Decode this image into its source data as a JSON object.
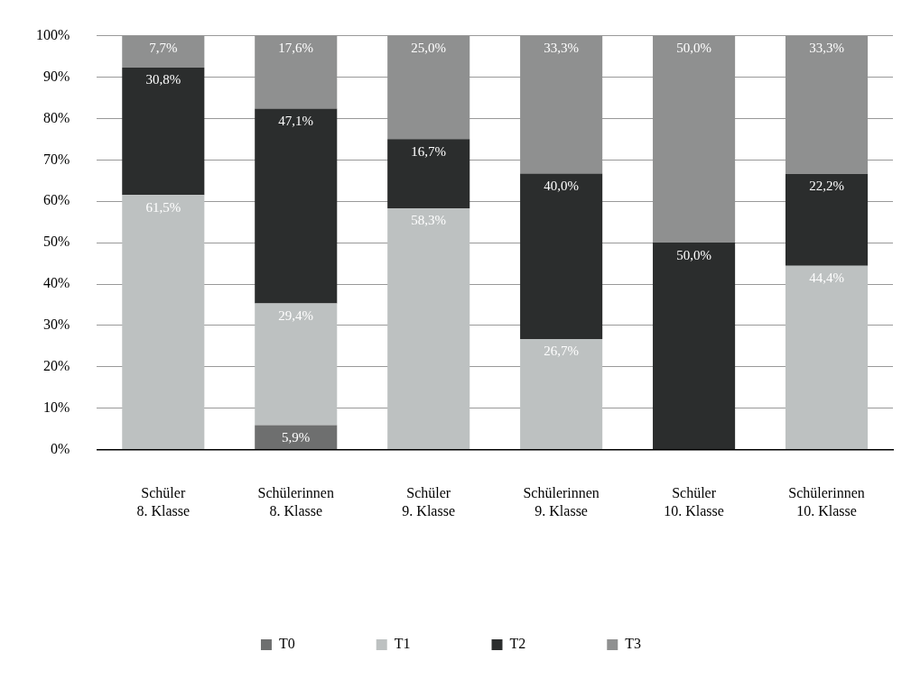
{
  "chart_data": {
    "type": "bar",
    "stacked": true,
    "categories": [
      "Schüler\n8. Klasse",
      "Schülerinnen\n8. Klasse",
      "Schüler\n9. Klasse",
      "Schülerinnen\n9. Klasse",
      "Schüler\n10. Klasse",
      "Schülerinnen\n10. Klasse"
    ],
    "series": [
      {
        "name": "T0",
        "color": "#6e6f6f",
        "values": [
          null,
          5.9,
          null,
          null,
          null,
          null
        ],
        "value_labels": [
          null,
          "5,9%",
          null,
          null,
          null,
          null
        ]
      },
      {
        "name": "T1",
        "color": "#bdc1c1",
        "values": [
          61.5,
          29.4,
          58.3,
          26.7,
          null,
          44.4
        ],
        "value_labels": [
          "61,5%",
          "29,4%",
          "58,3%",
          "26,7%",
          null,
          "44,4%"
        ]
      },
      {
        "name": "T2",
        "color": "#2b2d2d",
        "values": [
          30.8,
          47.1,
          16.7,
          40.0,
          50.0,
          22.2
        ],
        "value_labels": [
          "30,8%",
          "47,1%",
          "16,7%",
          "40,0%",
          "50,0%",
          "22,2%"
        ]
      },
      {
        "name": "T3",
        "color": "#8f9090",
        "values": [
          7.7,
          17.6,
          25.0,
          33.3,
          50.0,
          33.3
        ],
        "value_labels": [
          "7,7%",
          "17,6%",
          "25,0%",
          "33,3%",
          "50,0%",
          "33,3%"
        ]
      }
    ],
    "ylim": [
      0,
      100
    ],
    "yticks": [
      {
        "value": 0,
        "label": "0%"
      },
      {
        "value": 10,
        "label": "10%"
      },
      {
        "value": 20,
        "label": "20%"
      },
      {
        "value": 30,
        "label": "30%"
      },
      {
        "value": 40,
        "label": "40%"
      },
      {
        "value": 50,
        "label": "50%"
      },
      {
        "value": 60,
        "label": "60%"
      },
      {
        "value": 70,
        "label": "70%"
      },
      {
        "value": 80,
        "label": "80%"
      },
      {
        "value": 90,
        "label": "90%"
      },
      {
        "value": 100,
        "label": "100%"
      }
    ],
    "grid": "y",
    "legend": "bottom"
  }
}
